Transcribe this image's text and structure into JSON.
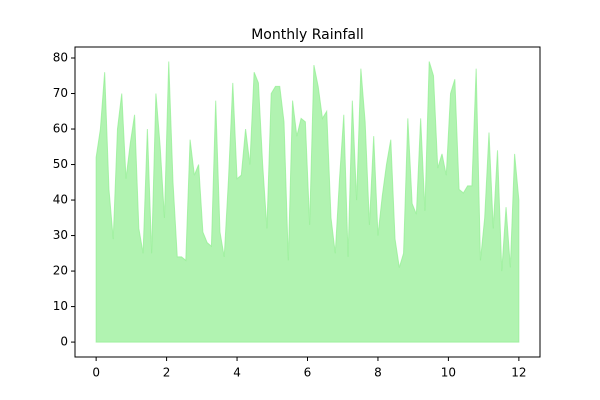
{
  "chart_data": {
    "type": "area",
    "title": "Monthly Rainfall",
    "x": [
      0,
      0.121,
      0.242,
      0.364,
      0.485,
      0.606,
      0.727,
      0.848,
      0.97,
      1.091,
      1.212,
      1.333,
      1.455,
      1.576,
      1.697,
      1.818,
      1.939,
      2.061,
      2.182,
      2.303,
      2.424,
      2.545,
      2.667,
      2.788,
      2.909,
      3.03,
      3.152,
      3.273,
      3.394,
      3.515,
      3.636,
      3.758,
      3.879,
      4.0,
      4.121,
      4.242,
      4.364,
      4.485,
      4.606,
      4.727,
      4.848,
      4.97,
      5.091,
      5.212,
      5.333,
      5.455,
      5.576,
      5.697,
      5.818,
      5.939,
      6.061,
      6.182,
      6.303,
      6.424,
      6.545,
      6.667,
      6.788,
      6.909,
      7.03,
      7.152,
      7.273,
      7.394,
      7.515,
      7.636,
      7.758,
      7.879,
      8.0,
      8.121,
      8.242,
      8.364,
      8.485,
      8.606,
      8.727,
      8.848,
      8.97,
      9.091,
      9.212,
      9.333,
      9.455,
      9.576,
      9.697,
      9.818,
      9.939,
      10.061,
      10.182,
      10.303,
      10.424,
      10.545,
      10.667,
      10.788,
      10.909,
      11.03,
      11.152,
      11.273,
      11.394,
      11.515,
      11.636,
      11.758,
      11.879,
      12
    ],
    "values": [
      52,
      60,
      76,
      43,
      29,
      60,
      70,
      46,
      56,
      64,
      32,
      25,
      60,
      25,
      70,
      55,
      35,
      79,
      45,
      24,
      24,
      23,
      57,
      47,
      50,
      31,
      28,
      27,
      68,
      31,
      24,
      46,
      73,
      46,
      47,
      60,
      50,
      76,
      73,
      50,
      32,
      70,
      72,
      72,
      62,
      23,
      68,
      58,
      63,
      62,
      33,
      78,
      72,
      63,
      65,
      35,
      25,
      46,
      64,
      24,
      68,
      40,
      77,
      62,
      33,
      58,
      30,
      41,
      50,
      57,
      29,
      21,
      25,
      63,
      39,
      36,
      63,
      37,
      79,
      75,
      49,
      53,
      47,
      70,
      74,
      43,
      42,
      44,
      44,
      77,
      23,
      35,
      59,
      32,
      54,
      20,
      38,
      21,
      53,
      40
    ],
    "color": "#90ee90",
    "xlim": [
      -0.6,
      12.6
    ],
    "xticks": [
      0,
      2,
      4,
      6,
      8,
      10,
      12
    ],
    "ylim": [
      -4.2,
      83.1
    ],
    "yticks": [
      0,
      10,
      20,
      30,
      40,
      50,
      60,
      70,
      80
    ]
  }
}
